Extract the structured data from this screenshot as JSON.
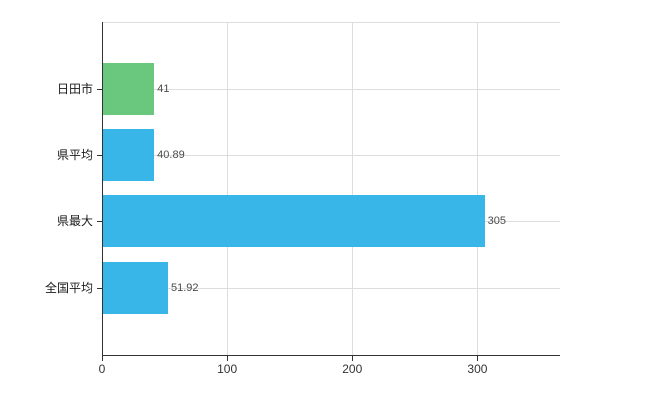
{
  "chart_data": {
    "type": "bar",
    "orientation": "horizontal",
    "title": "",
    "legend": "none",
    "grid": true,
    "categories": [
      "日田市",
      "県平均",
      "県最大",
      "全国平均"
    ],
    "values": [
      41,
      40.89,
      305,
      51.92
    ],
    "value_labels": [
      "41",
      "40.89",
      "305",
      "51.92"
    ],
    "bar_colors": [
      "#69c87d",
      "#38b6e8",
      "#38b6e8",
      "#38b6e8"
    ],
    "x_ticks": [
      0,
      100,
      200,
      300
    ],
    "x_tick_labels": [
      "0",
      "100",
      "200",
      "300"
    ],
    "xlim": [
      0,
      366
    ],
    "colors": {
      "bar_green": "#69c87d",
      "bar_blue": "#38b6e8",
      "axis": "#333333",
      "grid": "#dddddd",
      "category_label": "#1a1a1a",
      "tick_label": "#333333",
      "value_label": "#4a4a4a",
      "background": "#ffffff"
    }
  }
}
